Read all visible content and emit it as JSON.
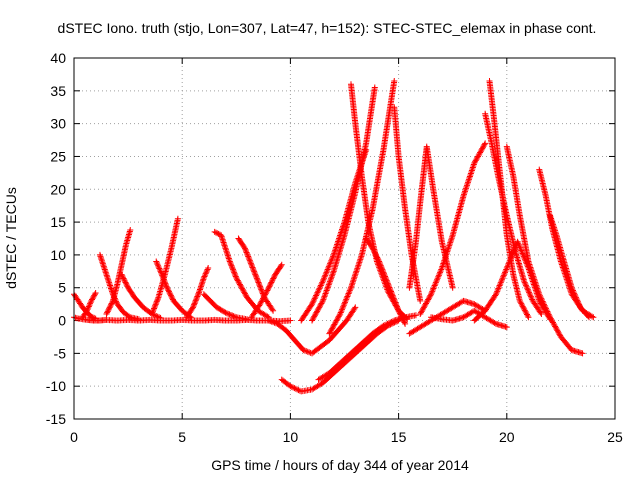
{
  "chart_data": {
    "type": "scatter",
    "title": "dSTEC Iono. truth (stjo, Lon=307, Lat=47, h=152): STEC-STEC_elemax in phase cont.",
    "xlabel": "GPS time / hours of day 344 of year 2014",
    "ylabel": "dSTEC  / TECUs",
    "xlim": [
      0,
      25
    ],
    "ylim": [
      -15,
      40
    ],
    "xticks": [
      0,
      5,
      10,
      15,
      20,
      25
    ],
    "yticks": [
      -15,
      -10,
      -5,
      0,
      5,
      10,
      15,
      20,
      25,
      30,
      35,
      40
    ],
    "grid": true,
    "marker": "+",
    "color": "#ff0000",
    "series": [
      {
        "x": [
          0.0,
          0.2,
          0.4,
          0.6,
          0.9,
          1.2,
          1.5,
          2.0,
          2.5,
          3.0,
          3.5,
          4.0,
          4.5,
          5.0,
          5.5,
          6.0,
          6.5,
          7.0,
          7.5,
          8.0,
          8.5,
          9.0,
          9.5,
          10.0
        ],
        "y": [
          0.5,
          0.3,
          0.2,
          0.1,
          0.0,
          0.0,
          0.1,
          0.0,
          0.1,
          0.0,
          0.1,
          0.0,
          0.0,
          0.1,
          0.0,
          0.0,
          0.1,
          0.0,
          0.0,
          0.1,
          0.0,
          0.0,
          -0.1,
          0.0
        ]
      },
      {
        "x": [
          0.0,
          0.2,
          0.4,
          0.6,
          0.8,
          1.0
        ],
        "y": [
          4.0,
          3.0,
          2.0,
          1.2,
          0.6,
          0.3
        ]
      },
      {
        "x": [
          0.4,
          0.6,
          0.8,
          1.0
        ],
        "y": [
          0.5,
          1.5,
          3.0,
          4.2
        ]
      },
      {
        "x": [
          1.2,
          1.4,
          1.6,
          1.8,
          2.0,
          2.3,
          2.6,
          3.0
        ],
        "y": [
          10.0,
          8.0,
          6.0,
          4.0,
          2.5,
          1.2,
          0.5,
          0.2
        ]
      },
      {
        "x": [
          1.5,
          1.8,
          2.0,
          2.2,
          2.4,
          2.6
        ],
        "y": [
          1.0,
          3.0,
          5.5,
          8.5,
          11.5,
          13.8
        ]
      },
      {
        "x": [
          2.2,
          2.5,
          2.8,
          3.2,
          3.6,
          4.0
        ],
        "y": [
          7.0,
          5.0,
          3.5,
          2.0,
          1.0,
          0.4
        ]
      },
      {
        "x": [
          3.8,
          4.0,
          4.3,
          4.6,
          5.0,
          5.4
        ],
        "y": [
          9.0,
          7.5,
          5.0,
          3.0,
          1.5,
          0.5
        ]
      },
      {
        "x": [
          3.6,
          3.9,
          4.2,
          4.5,
          4.8
        ],
        "y": [
          1.0,
          3.5,
          7.0,
          11.0,
          15.5
        ]
      },
      {
        "x": [
          5.2,
          5.5,
          5.8,
          6.0,
          6.2
        ],
        "y": [
          0.5,
          2.0,
          4.5,
          6.5,
          8.0
        ]
      },
      {
        "x": [
          6.5,
          6.8,
          7.0,
          7.2,
          7.5,
          8.0,
          8.5,
          9.0
        ],
        "y": [
          13.5,
          13.0,
          11.0,
          9.0,
          6.5,
          3.5,
          1.5,
          0.5
        ]
      },
      {
        "x": [
          6.0,
          6.3,
          6.6,
          7.0,
          7.5,
          8.0
        ],
        "y": [
          4.0,
          3.0,
          2.0,
          1.2,
          0.5,
          0.2
        ]
      },
      {
        "x": [
          7.6,
          7.9,
          8.2,
          8.5,
          8.8,
          9.2
        ],
        "y": [
          12.5,
          11.0,
          8.5,
          6.0,
          3.5,
          1.5
        ]
      },
      {
        "x": [
          8.2,
          8.6,
          9.0,
          9.3,
          9.6
        ],
        "y": [
          0.5,
          2.5,
          5.0,
          7.0,
          8.5
        ]
      },
      {
        "x": [
          9.0,
          9.4,
          9.8,
          10.2,
          10.6,
          11.0,
          11.4,
          11.8,
          12.2,
          12.6,
          13.0
        ],
        "y": [
          0.0,
          -0.5,
          -1.5,
          -3.0,
          -4.5,
          -5.0,
          -4.0,
          -3.0,
          -1.5,
          0.0,
          2.0
        ]
      },
      {
        "x": [
          9.6,
          10.0,
          10.5,
          11.0,
          11.5,
          12.0,
          12.5,
          13.0,
          13.5,
          14.0,
          14.5,
          15.0
        ],
        "y": [
          -9.0,
          -10.0,
          -10.8,
          -10.5,
          -9.5,
          -8.0,
          -6.5,
          -5.0,
          -3.5,
          -2.0,
          -0.8,
          0.0
        ]
      },
      {
        "x": [
          11.3,
          11.8,
          12.3,
          12.8,
          13.3,
          13.8,
          14.3,
          14.8,
          15.3,
          15.8
        ],
        "y": [
          -9.0,
          -8.0,
          -6.5,
          -5.0,
          -3.5,
          -2.0,
          -0.8,
          0.0,
          0.5,
          0.8
        ]
      },
      {
        "x": [
          10.5,
          11.0,
          11.5,
          12.0,
          12.5,
          13.0,
          13.5
        ],
        "y": [
          0.0,
          2.5,
          6.0,
          10.0,
          15.0,
          21.0,
          26.0
        ]
      },
      {
        "x": [
          11.0,
          11.5,
          12.0,
          12.5,
          13.0,
          13.5,
          13.9
        ],
        "y": [
          0.0,
          3.0,
          7.5,
          13.0,
          19.5,
          27.0,
          35.5
        ]
      },
      {
        "x": [
          11.8,
          12.3,
          12.8,
          13.3,
          13.8,
          14.3,
          14.8
        ],
        "y": [
          -2.0,
          1.0,
          5.0,
          10.0,
          17.0,
          26.0,
          36.5
        ]
      },
      {
        "x": [
          12.8,
          13.0,
          13.3,
          13.6,
          14.0,
          14.5,
          15.0,
          15.4
        ],
        "y": [
          36.0,
          30.0,
          22.0,
          15.0,
          9.0,
          4.5,
          1.5,
          0.2
        ]
      },
      {
        "x": [
          13.5,
          13.8,
          14.1,
          14.4,
          14.7,
          15.0,
          15.3
        ],
        "y": [
          12.5,
          11.0,
          9.0,
          6.5,
          4.0,
          1.5,
          -0.5
        ]
      },
      {
        "x": [
          14.8,
          15.0,
          15.3,
          15.6,
          16.0
        ],
        "y": [
          32.5,
          25.0,
          17.0,
          10.0,
          3.0
        ]
      },
      {
        "x": [
          15.5,
          15.8,
          16.0,
          16.3,
          16.6,
          17.0,
          17.5
        ],
        "y": [
          5.0,
          12.0,
          18.0,
          26.5,
          20.0,
          12.0,
          5.0
        ]
      },
      {
        "x": [
          16.0,
          16.5,
          17.0,
          17.5,
          18.0,
          18.5,
          19.0
        ],
        "y": [
          1.0,
          4.0,
          8.0,
          13.0,
          19.0,
          24.0,
          27.0
        ]
      },
      {
        "x": [
          16.5,
          17.0,
          17.5,
          18.0,
          18.5,
          19.0,
          19.5,
          20.0
        ],
        "y": [
          0.5,
          0.2,
          0.0,
          0.5,
          1.5,
          0.5,
          -0.5,
          -1.0
        ]
      },
      {
        "x": [
          19.2,
          19.4,
          19.6,
          19.8,
          20.0,
          20.3,
          20.6,
          21.0
        ],
        "y": [
          36.5,
          31.0,
          25.0,
          19.0,
          13.0,
          7.0,
          3.0,
          0.5
        ]
      },
      {
        "x": [
          19.0,
          19.3,
          19.6,
          20.0,
          20.4,
          20.8,
          21.2,
          21.6
        ],
        "y": [
          31.5,
          27.0,
          22.0,
          16.0,
          10.5,
          6.0,
          3.0,
          1.0
        ]
      },
      {
        "x": [
          20.0,
          20.3,
          20.6,
          21.0,
          21.5,
          22.0,
          22.5,
          23.0,
          23.5
        ],
        "y": [
          26.5,
          22.0,
          16.0,
          9.0,
          4.0,
          0.5,
          -2.5,
          -4.5,
          -5.0
        ]
      },
      {
        "x": [
          21.5,
          21.8,
          22.1,
          22.5,
          23.0,
          23.5,
          24.0
        ],
        "y": [
          23.0,
          19.0,
          14.0,
          9.0,
          4.0,
          1.5,
          0.5
        ]
      },
      {
        "x": [
          22.0,
          22.3,
          22.6,
          23.0,
          23.4,
          23.8
        ],
        "y": [
          16.0,
          13.0,
          9.5,
          5.0,
          2.0,
          0.5
        ]
      },
      {
        "x": [
          18.5,
          19.0,
          19.5,
          20.0,
          20.5,
          21.0,
          21.5,
          22.0
        ],
        "y": [
          0.0,
          1.5,
          4.0,
          8.0,
          12.0,
          8.0,
          3.0,
          0.2
        ]
      },
      {
        "x": [
          15.5,
          16.0,
          16.5,
          17.0,
          17.5,
          18.0,
          18.5,
          19.0
        ],
        "y": [
          -2.0,
          -1.0,
          0.0,
          1.0,
          2.0,
          3.0,
          2.5,
          1.5
        ]
      }
    ]
  }
}
